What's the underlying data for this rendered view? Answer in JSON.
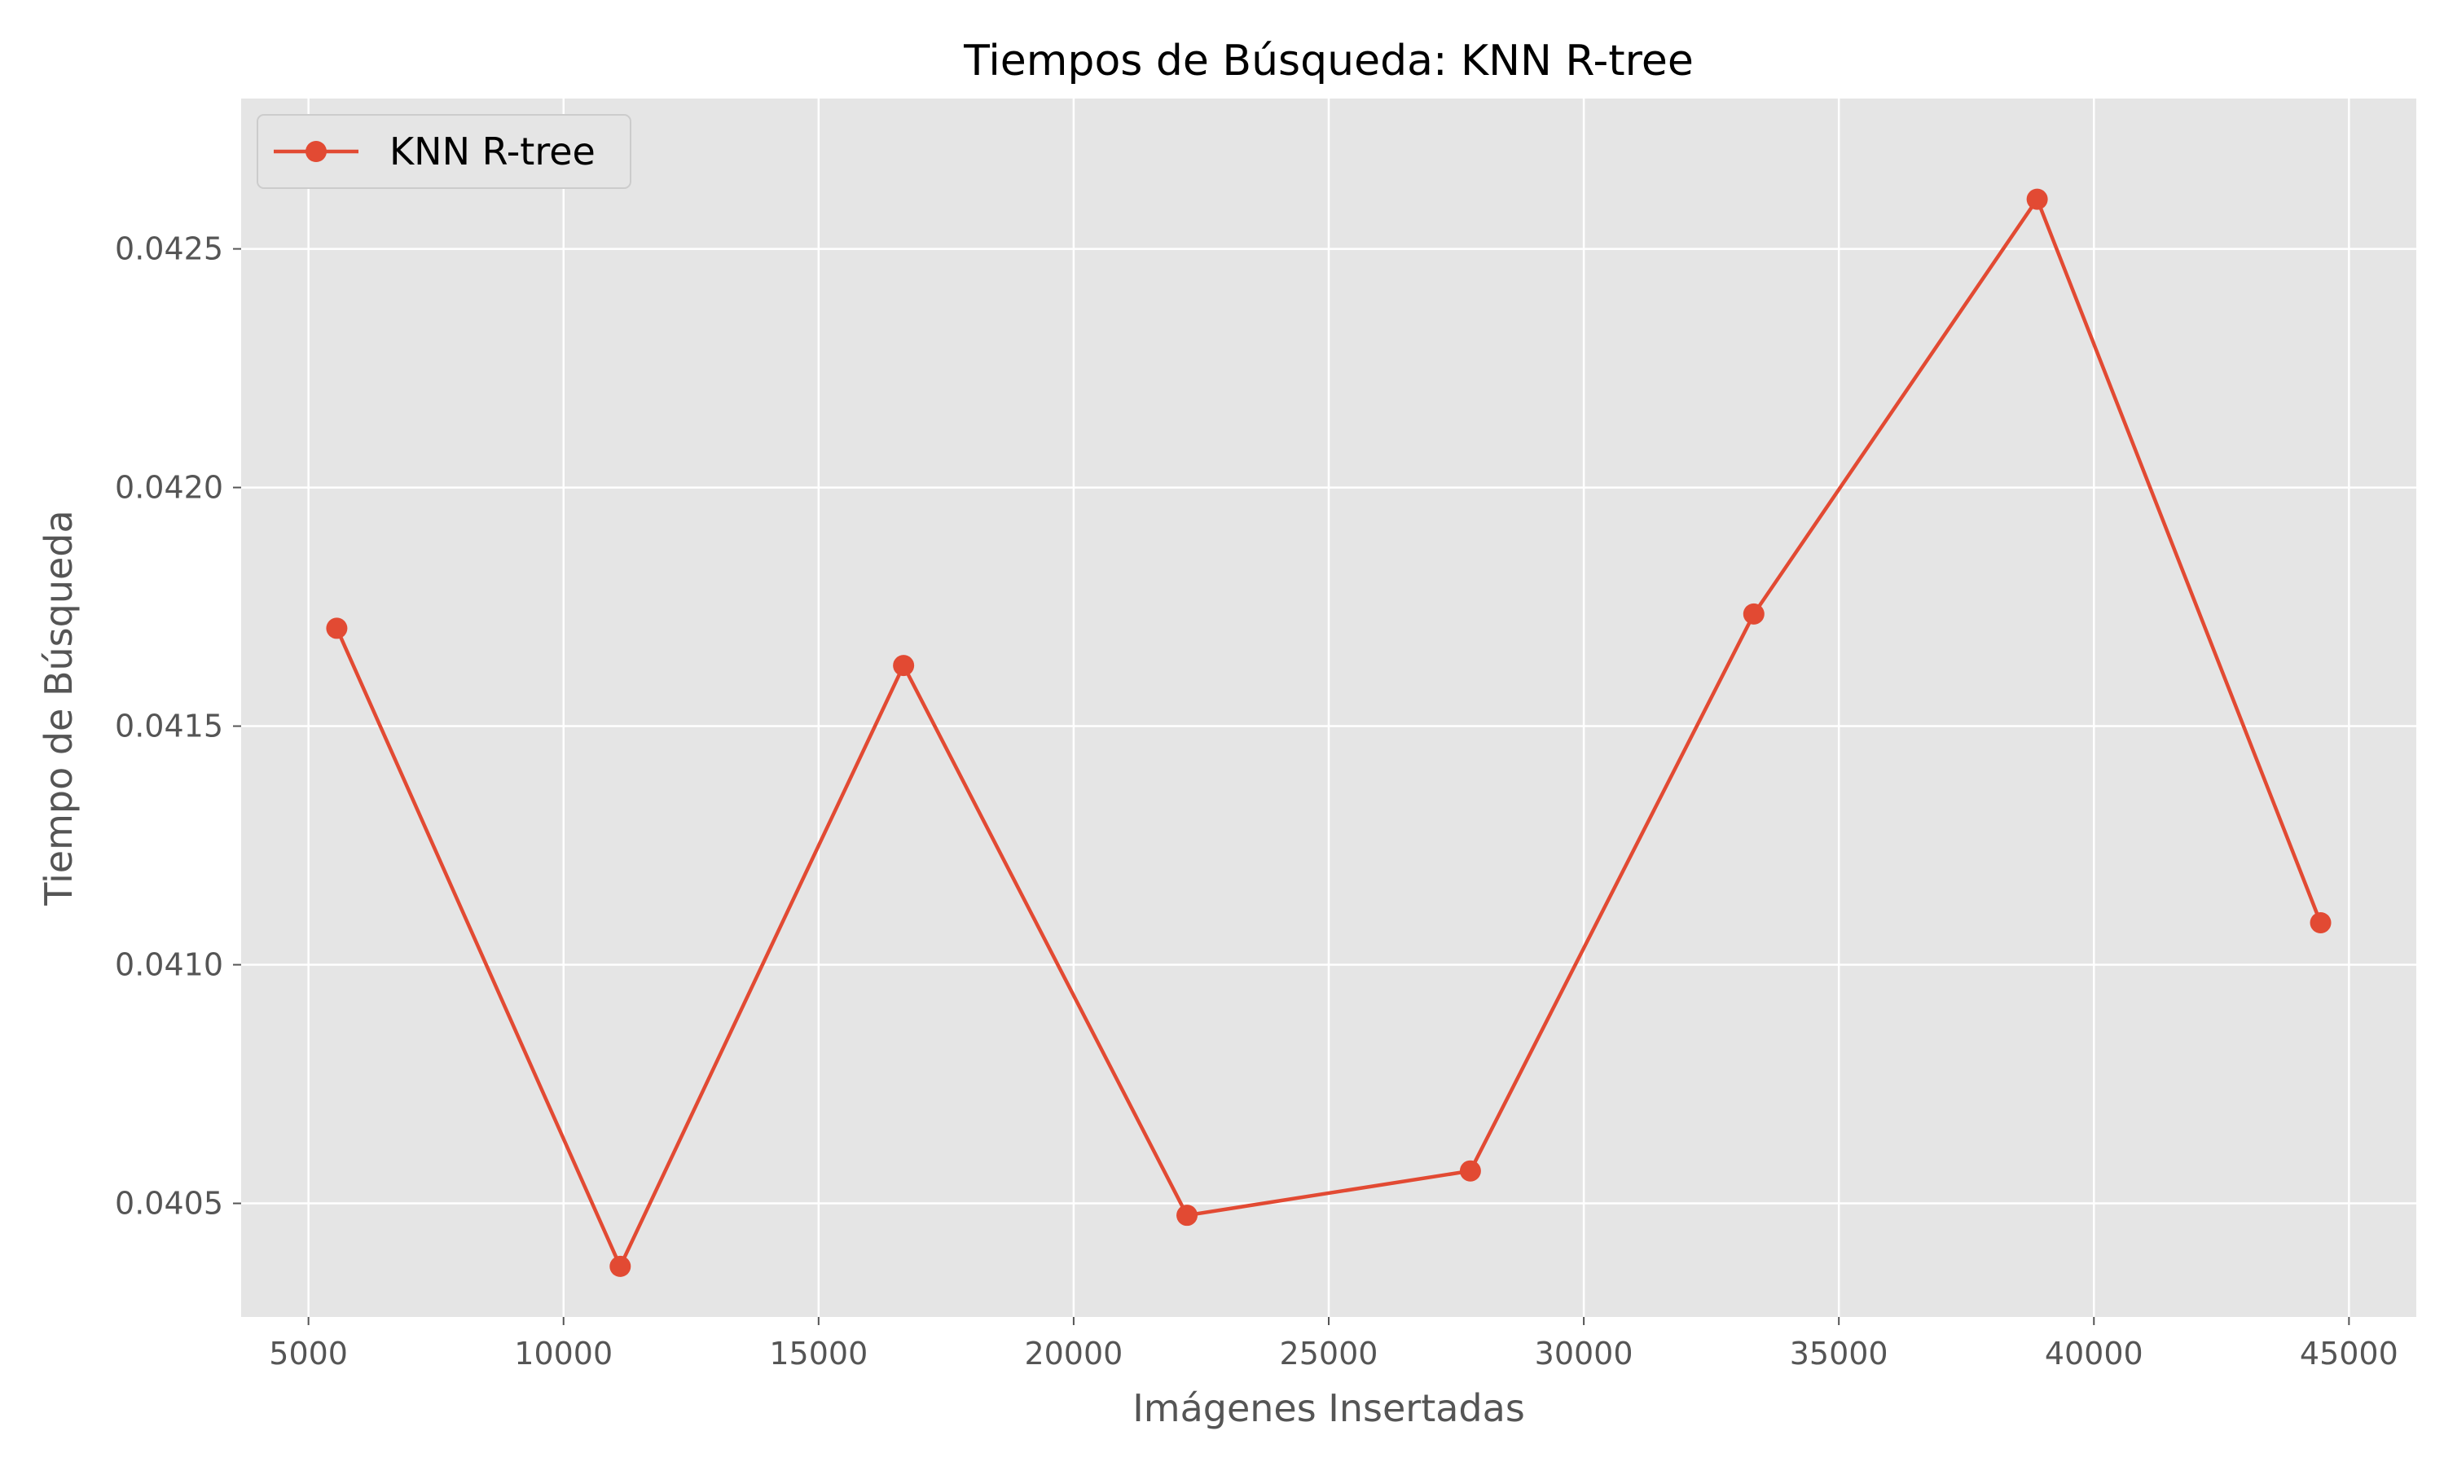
{
  "chart_data": {
    "type": "line",
    "title": "Tiempos de Búsqueda: KNN R-tree",
    "xlabel": "Imágenes Insertadas",
    "ylabel": "Tiempo de Búsqueda",
    "x": [
      5555,
      11111,
      16666,
      22222,
      27777,
      33333,
      38888,
      44444
    ],
    "series": [
      {
        "name": "KNN R-tree",
        "color": "#e24a33",
        "marker": "circle",
        "values": [
          0.041705,
          0.040368,
          0.041627,
          0.040475,
          0.040568,
          0.041735,
          0.042604,
          0.041088
        ]
      }
    ],
    "xlim": [
      3680,
      46320
    ],
    "ylim": [
      0.040262,
      0.042815
    ],
    "xticks": [
      5000,
      10000,
      15000,
      20000,
      25000,
      30000,
      35000,
      40000,
      45000
    ],
    "xtick_labels": [
      "5000",
      "10000",
      "15000",
      "20000",
      "25000",
      "30000",
      "35000",
      "40000",
      "45000"
    ],
    "yticks": [
      0.0405,
      0.041,
      0.0415,
      0.042,
      0.0425
    ],
    "ytick_labels": [
      "0.0405",
      "0.0410",
      "0.0415",
      "0.0420",
      "0.0425"
    ],
    "grid": true,
    "legend_position": "top-left",
    "style": {
      "background": "#e5e5e5",
      "grid_color": "#ffffff"
    }
  }
}
